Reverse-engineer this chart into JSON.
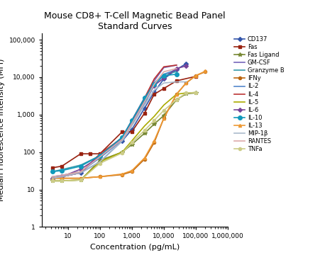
{
  "title": "Mouse CD8+ T-Cell Magnetic Bead Panel\nStandard Curves",
  "xlabel": "Concentration (pg/mL",
  "ylabel": "Median Fluorescence Intensity (MFI)",
  "xlim": [
    1.5,
    1000000
  ],
  "ylim": [
    1,
    150000
  ],
  "background_color": "#ffffff",
  "title_fontsize": 9,
  "label_fontsize": 8,
  "legend_fontsize": 6,
  "series": [
    {
      "name": "CD137",
      "color": "#3355AA",
      "marker": "D",
      "markersize": 3,
      "linewidth": 1.2,
      "x": [
        3.2,
        6.4,
        25,
        100,
        500,
        1000,
        2500,
        5000,
        10000,
        25000,
        50000
      ],
      "y": [
        20,
        22,
        28,
        55,
        200,
        400,
        1500,
        4000,
        9000,
        16000,
        23000
      ]
    },
    {
      "name": "Fas",
      "color": "#992211",
      "marker": "s",
      "markersize": 3,
      "linewidth": 1.2,
      "x": [
        3.2,
        6.4,
        25,
        50,
        100,
        500,
        1000,
        2500,
        5000,
        10000,
        25000,
        100000
      ],
      "y": [
        38,
        42,
        90,
        90,
        90,
        350,
        350,
        1100,
        3500,
        5000,
        8000,
        10500
      ]
    },
    {
      "name": "Fas Ligand",
      "color": "#778833",
      "marker": "*",
      "markersize": 4,
      "linewidth": 1.2,
      "x": [
        3.2,
        6.4,
        25,
        100,
        500,
        1000,
        2500,
        5000,
        10000,
        25000,
        50000,
        100000
      ],
      "y": [
        17,
        17,
        18,
        60,
        100,
        160,
        320,
        560,
        950,
        2500,
        3600,
        3800
      ]
    },
    {
      "name": "GM-CSF",
      "color": "#7766BB",
      "marker": null,
      "markersize": 3,
      "linewidth": 1.2,
      "x": [
        3.2,
        6.4,
        25,
        100,
        500,
        1000,
        2500,
        5000,
        10000,
        25000
      ],
      "y": [
        20,
        22,
        28,
        80,
        220,
        600,
        2500,
        8000,
        18000,
        21000
      ]
    },
    {
      "name": "Granzyme B",
      "color": "#3399AA",
      "marker": null,
      "markersize": 3,
      "linewidth": 1.2,
      "x": [
        3.2,
        6.4,
        25,
        100,
        500,
        1000,
        2500,
        5000,
        10000,
        25000
      ],
      "y": [
        30,
        34,
        45,
        80,
        250,
        700,
        2500,
        7000,
        12000,
        14000
      ]
    },
    {
      "name": "IFNy",
      "color": "#BB6611",
      "marker": "o",
      "markersize": 3,
      "linewidth": 1.2,
      "x": [
        3.2,
        6.4,
        25,
        100,
        500,
        1000,
        2500,
        5000,
        10000,
        25000,
        50000,
        100000,
        200000
      ],
      "y": [
        20,
        20,
        20,
        22,
        25,
        30,
        65,
        180,
        800,
        3500,
        7000,
        11000,
        14000
      ]
    },
    {
      "name": "IL-2",
      "color": "#5588CC",
      "marker": null,
      "markersize": 3,
      "linewidth": 1.2,
      "x": [
        3.2,
        6.4,
        25,
        100,
        500,
        1000,
        2500,
        5000,
        10000,
        25000
      ],
      "y": [
        22,
        24,
        30,
        70,
        210,
        550,
        2000,
        6000,
        12000,
        16000
      ]
    },
    {
      "name": "IL-4",
      "color": "#BB3333",
      "marker": null,
      "markersize": 3,
      "linewidth": 1.2,
      "x": [
        3.2,
        6.4,
        25,
        100,
        500,
        1000,
        2500,
        5000,
        10000,
        25000
      ],
      "y": [
        20,
        22,
        28,
        90,
        240,
        700,
        2800,
        9000,
        19000,
        21000
      ]
    },
    {
      "name": "IL-5",
      "color": "#AAAA00",
      "marker": null,
      "markersize": 3,
      "linewidth": 1.2,
      "x": [
        3.2,
        6.4,
        25,
        100,
        500,
        1000,
        2500,
        5000,
        10000,
        25000,
        50000,
        100000
      ],
      "y": [
        17,
        17,
        18,
        55,
        100,
        200,
        500,
        900,
        1800,
        3500,
        3800,
        3900
      ]
    },
    {
      "name": "IL-6",
      "color": "#774499",
      "marker": "D",
      "markersize": 3,
      "linewidth": 1.2,
      "x": [
        3.2,
        6.4,
        25,
        100,
        500,
        1000,
        2500,
        5000,
        10000,
        25000,
        50000
      ],
      "y": [
        20,
        22,
        35,
        75,
        240,
        700,
        2800,
        6000,
        9500,
        17000,
        20000
      ]
    },
    {
      "name": "IL-10",
      "color": "#1199BB",
      "marker": "o",
      "markersize": 4,
      "linewidth": 1.2,
      "x": [
        3.2,
        6.4,
        25,
        100,
        500,
        1000,
        2500,
        5000,
        10000,
        25000
      ],
      "y": [
        30,
        32,
        42,
        80,
        250,
        700,
        2800,
        6500,
        11000,
        12000
      ]
    },
    {
      "name": "IL-13",
      "color": "#EE9933",
      "marker": "^",
      "markersize": 3,
      "linewidth": 1.2,
      "x": [
        3.2,
        6.4,
        25,
        100,
        500,
        1000,
        2500,
        5000,
        10000,
        25000,
        50000,
        100000,
        200000
      ],
      "y": [
        20,
        20,
        20,
        22,
        26,
        32,
        70,
        200,
        800,
        3500,
        7000,
        11000,
        14500
      ]
    },
    {
      "name": "MIP-1β",
      "color": "#AABBCC",
      "marker": null,
      "markersize": 3,
      "linewidth": 1.2,
      "x": [
        3.2,
        6.4,
        25,
        100,
        500,
        1000,
        2500,
        5000,
        10000,
        25000,
        50000
      ],
      "y": [
        20,
        22,
        28,
        55,
        200,
        500,
        1800,
        4500,
        7000,
        7500,
        7500
      ]
    },
    {
      "name": "RANTES",
      "color": "#DDAAAA",
      "marker": null,
      "markersize": 3,
      "linewidth": 1.2,
      "x": [
        3.2,
        6.4,
        25,
        100,
        500,
        1000,
        2500,
        5000,
        10000,
        25000
      ],
      "y": [
        22,
        24,
        30,
        75,
        220,
        580,
        2200,
        6500,
        14000,
        17000
      ]
    },
    {
      "name": "TNFa",
      "color": "#CCCC88",
      "marker": "o",
      "markersize": 3,
      "linewidth": 1.2,
      "x": [
        3.2,
        6.4,
        25,
        100,
        500,
        1000,
        2500,
        5000,
        10000,
        25000,
        50000,
        100000
      ],
      "y": [
        17,
        17,
        18,
        50,
        95,
        180,
        380,
        700,
        1300,
        2500,
        3800,
        3900
      ]
    }
  ]
}
